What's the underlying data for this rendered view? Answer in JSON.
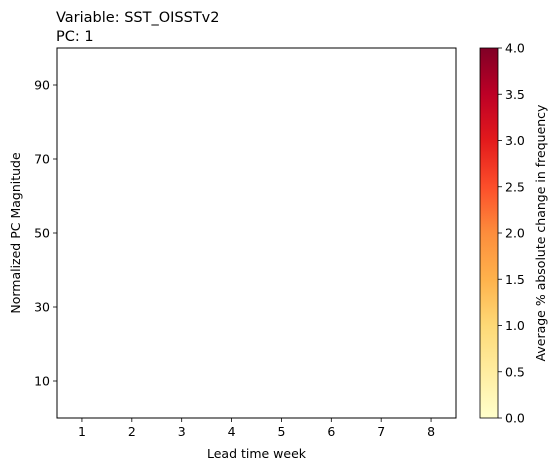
{
  "chart_data": {
    "type": "heatmap",
    "title_lines": [
      "Variable: SST_OISSTv2",
      "PC: 1"
    ],
    "xlabel": "Lead time week",
    "ylabel": "Normalized PC Magnitude",
    "x_ticks": [
      "1",
      "2",
      "3",
      "4",
      "5",
      "6",
      "7",
      "8"
    ],
    "y_ticks": [
      "10",
      "30",
      "50",
      "70",
      "90"
    ],
    "x_tick_values": [
      1,
      2,
      3,
      4,
      5,
      6,
      7,
      8
    ],
    "y_tick_values": [
      10,
      30,
      50,
      70,
      90
    ],
    "xlim": [
      0.5,
      8.5
    ],
    "ylim": [
      0,
      100
    ],
    "values": [],
    "colorbar": {
      "label": "Average % absolute change in frequency",
      "range": [
        0.0,
        4.0
      ],
      "ticks": [
        "0.0",
        "0.5",
        "1.0",
        "1.5",
        "2.0",
        "2.5",
        "3.0",
        "3.5",
        "4.0"
      ],
      "tick_values": [
        0.0,
        0.5,
        1.0,
        1.5,
        2.0,
        2.5,
        3.0,
        3.5,
        4.0
      ],
      "colormap": "YlOrRd",
      "colors": [
        "#ffffcc",
        "#ffeda0",
        "#fed976",
        "#feb24c",
        "#fd8d3c",
        "#fc4e2a",
        "#e31a1c",
        "#bd0026",
        "#800026"
      ]
    },
    "grid": false
  }
}
